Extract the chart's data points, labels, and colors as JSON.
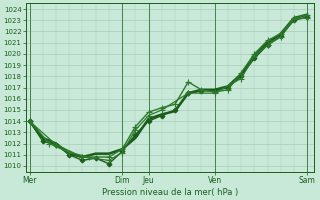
{
  "bg_color": "#c8e8d8",
  "grid_color": "#aaccbb",
  "line_color": "#1a5e1a",
  "line_color2": "#2d7a2d",
  "xlabel": "Pression niveau de la mer( hPa )",
  "ylim": [
    1009.5,
    1024.5
  ],
  "yticks": [
    1010,
    1011,
    1012,
    1013,
    1014,
    1015,
    1016,
    1017,
    1018,
    1019,
    1020,
    1021,
    1022,
    1023,
    1024
  ],
  "xtick_labels": [
    "Mer",
    "Dim",
    "Jeu",
    "Ven",
    "Sam"
  ],
  "xtick_pos": [
    0,
    7,
    9,
    14,
    21
  ],
  "vline_pos": [
    0,
    7,
    9,
    14,
    21
  ],
  "xlim": [
    -0.3,
    21.5
  ],
  "series": [
    {
      "x": [
        0,
        1,
        2,
        3,
        4,
        5,
        6,
        7,
        8,
        9,
        10,
        11,
        12,
        13,
        14,
        15,
        16,
        17,
        18,
        19,
        20,
        21
      ],
      "y": [
        1014.0,
        1012.5,
        1012.0,
        1011.1,
        1010.8,
        1011.1,
        1011.1,
        1011.5,
        1012.5,
        1014.2,
        1014.6,
        1014.9,
        1016.5,
        1016.8,
        1016.8,
        1017.1,
        1018.2,
        1019.8,
        1021.0,
        1021.8,
        1023.2,
        1023.5
      ],
      "marker": null,
      "lw": 1.8
    },
    {
      "x": [
        0,
        1,
        2,
        3,
        4,
        5,
        6,
        7,
        8,
        9,
        10,
        11,
        12,
        13,
        14,
        15,
        16,
        17,
        18,
        19,
        20,
        21
      ],
      "y": [
        1014.0,
        1012.2,
        1011.9,
        1011.0,
        1010.5,
        1010.7,
        1010.2,
        1011.3,
        1012.8,
        1014.0,
        1014.5,
        1015.0,
        1016.5,
        1016.7,
        1016.7,
        1017.0,
        1018.0,
        1019.6,
        1020.8,
        1021.6,
        1023.0,
        1023.3
      ],
      "marker": "D",
      "markersize": 2.5,
      "lw": 1.0
    },
    {
      "x": [
        0,
        1.5,
        3,
        4.5,
        6,
        7,
        8,
        9,
        10,
        11,
        12,
        13,
        14,
        15,
        16,
        17,
        18,
        19,
        20,
        21
      ],
      "y": [
        1014.0,
        1012.0,
        1011.2,
        1010.8,
        1010.8,
        1011.5,
        1013.5,
        1014.8,
        1015.2,
        1015.5,
        1017.5,
        1016.8,
        1016.6,
        1016.8,
        1018.3,
        1020.0,
        1021.2,
        1021.8,
        1023.2,
        1023.5
      ],
      "marker": "+",
      "markersize": 4,
      "lw": 1.0
    },
    {
      "x": [
        0,
        2,
        4,
        6,
        7,
        8,
        9,
        10,
        12,
        14,
        16,
        17,
        18,
        19,
        20,
        21
      ],
      "y": [
        1014.0,
        1011.9,
        1010.8,
        1010.5,
        1011.2,
        1013.2,
        1014.5,
        1015.0,
        1016.5,
        1016.5,
        1017.8,
        1019.8,
        1020.8,
        1021.5,
        1023.1,
        1023.2
      ],
      "marker": "+",
      "markersize": 4,
      "lw": 0.9
    }
  ]
}
